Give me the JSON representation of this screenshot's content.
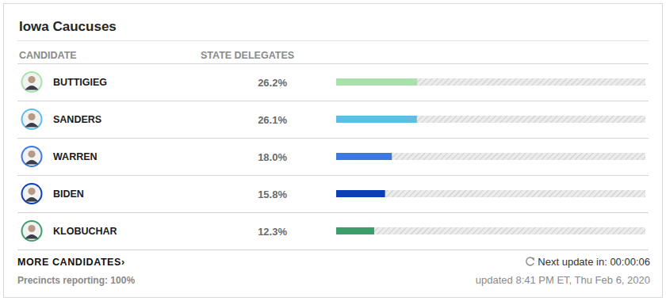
{
  "chart_data": {
    "type": "bar",
    "orientation": "horizontal",
    "title": "Iowa Caucuses",
    "column_headers": [
      "CANDIDATE",
      "STATE DELEGATES"
    ],
    "categories": [
      "BUTTIGIEG",
      "SANDERS",
      "WARREN",
      "BIDEN",
      "KLOBUCHAR"
    ],
    "values": [
      26.2,
      26.1,
      18.0,
      15.8,
      12.3
    ],
    "value_labels": [
      "26.2%",
      "26.1%",
      "18.0%",
      "15.8%",
      "12.3%"
    ],
    "colors": [
      "#a6e2aa",
      "#5bbde8",
      "#3b78e0",
      "#0c3fb5",
      "#3e9e6b"
    ],
    "xlim": [
      0,
      100
    ],
    "data_labels": true,
    "tick_labels": false,
    "footer": {
      "more_link": "MORE CANDIDATES›",
      "precincts": "Precincts reporting: 100%",
      "next_update": "Next update in: 00:00:06",
      "updated": "updated 8:41 PM ET, Thu Feb 6, 2020"
    }
  }
}
